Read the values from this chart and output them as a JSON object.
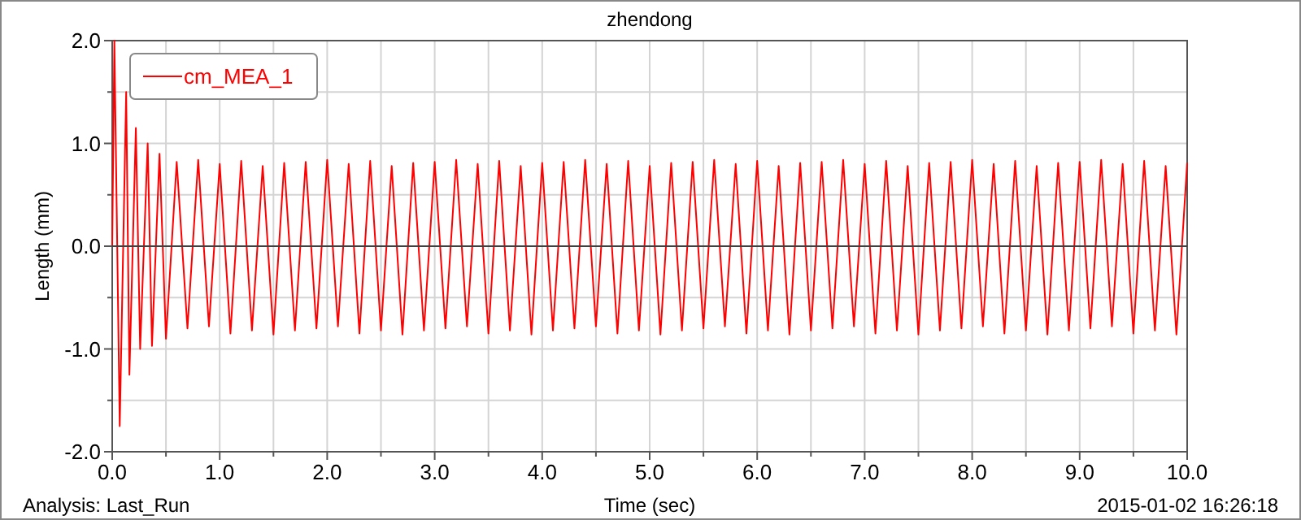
{
  "chart_data": {
    "type": "line",
    "title": "zhendong",
    "xlabel": "Time (sec)",
    "ylabel": "Length (mm)",
    "xlim": [
      0,
      10
    ],
    "ylim": [
      -2,
      2
    ],
    "xticks": [
      {
        "value": 0,
        "label": "0.0"
      },
      {
        "value": 0.5,
        "label": null
      },
      {
        "value": 1,
        "label": "1.0"
      },
      {
        "value": 1.5,
        "label": null
      },
      {
        "value": 2,
        "label": "2.0"
      },
      {
        "value": 2.5,
        "label": null
      },
      {
        "value": 3,
        "label": "3.0"
      },
      {
        "value": 3.5,
        "label": null
      },
      {
        "value": 4,
        "label": "4.0"
      },
      {
        "value": 4.5,
        "label": null
      },
      {
        "value": 5,
        "label": "5.0"
      },
      {
        "value": 5.5,
        "label": null
      },
      {
        "value": 6,
        "label": "6.0"
      },
      {
        "value": 6.5,
        "label": null
      },
      {
        "value": 7,
        "label": "7.0"
      },
      {
        "value": 7.5,
        "label": null
      },
      {
        "value": 8,
        "label": "8.0"
      },
      {
        "value": 8.5,
        "label": null
      },
      {
        "value": 9,
        "label": "9.0"
      },
      {
        "value": 9.5,
        "label": null
      },
      {
        "value": 10,
        "label": "10.0"
      }
    ],
    "yticks": [
      {
        "value": -2,
        "label": "-2.0"
      },
      {
        "value": -1.5,
        "label": null
      },
      {
        "value": -1,
        "label": "-1.0"
      },
      {
        "value": -0.5,
        "label": null
      },
      {
        "value": 0,
        "label": "0.0"
      },
      {
        "value": 0.5,
        "label": null
      },
      {
        "value": 1,
        "label": "1.0"
      },
      {
        "value": 1.5,
        "label": null
      },
      {
        "value": 2,
        "label": "2.0"
      }
    ],
    "grid": true,
    "legend": "top left",
    "line_style": "solid",
    "ref_lines": [
      {
        "axis": "y",
        "value": 0,
        "color": "#404040"
      }
    ],
    "annotations": [
      "Analysis:  Last_Run",
      "2015-01-02 16:26:18"
    ],
    "series": [
      {
        "name": "cm_MEA_1",
        "color": "#ff0000",
        "x": [
          0,
          0.02,
          0.07,
          0.13,
          0.16,
          0.22,
          0.26,
          0.33,
          0.37,
          0.44,
          0.5,
          0.6,
          0.7,
          0.8,
          0.9,
          1.0,
          1.1,
          1.2,
          1.3,
          1.4,
          1.5,
          1.6,
          1.7,
          1.8,
          1.9,
          2.0,
          2.1,
          2.2,
          2.3,
          2.4,
          2.5,
          2.6,
          2.7,
          2.8,
          2.9,
          3.0,
          3.1,
          3.2,
          3.3,
          3.4,
          3.5,
          3.6,
          3.7,
          3.8,
          3.9,
          4.0,
          4.1,
          4.2,
          4.3,
          4.4,
          4.5,
          4.6,
          4.7,
          4.8,
          4.9,
          5.0,
          5.1,
          5.2,
          5.3,
          5.4,
          5.5,
          5.6,
          5.7,
          5.8,
          5.9,
          6.0,
          6.1,
          6.2,
          6.3,
          6.4,
          6.5,
          6.6,
          6.7,
          6.8,
          6.9,
          7.0,
          7.1,
          7.2,
          7.3,
          7.4,
          7.5,
          7.6,
          7.7,
          7.8,
          7.9,
          8.0,
          8.1,
          8.2,
          8.3,
          8.4,
          8.5,
          8.6,
          8.7,
          8.8,
          8.9,
          9.0,
          9.1,
          9.2,
          9.3,
          9.4,
          9.5,
          9.6,
          9.7,
          9.8,
          9.9,
          10.0
        ],
        "values": [
          0,
          2.0,
          -1.75,
          1.5,
          -1.25,
          1.15,
          -1.0,
          1.0,
          -0.97,
          0.9,
          -0.9,
          0.82,
          -0.8,
          0.84,
          -0.78,
          0.8,
          -0.85,
          0.83,
          -0.82,
          0.78,
          -0.86,
          0.81,
          -0.82,
          0.82,
          -0.8,
          0.84,
          -0.78,
          0.8,
          -0.85,
          0.83,
          -0.82,
          0.78,
          -0.86,
          0.81,
          -0.82,
          0.82,
          -0.8,
          0.84,
          -0.78,
          0.8,
          -0.85,
          0.83,
          -0.82,
          0.78,
          -0.86,
          0.81,
          -0.82,
          0.82,
          -0.8,
          0.84,
          -0.78,
          0.8,
          -0.85,
          0.83,
          -0.82,
          0.78,
          -0.86,
          0.81,
          -0.82,
          0.82,
          -0.8,
          0.84,
          -0.78,
          0.8,
          -0.85,
          0.83,
          -0.82,
          0.78,
          -0.86,
          0.81,
          -0.82,
          0.82,
          -0.8,
          0.84,
          -0.78,
          0.8,
          -0.85,
          0.83,
          -0.82,
          0.78,
          -0.86,
          0.81,
          -0.82,
          0.82,
          -0.8,
          0.84,
          -0.78,
          0.8,
          -0.85,
          0.83,
          -0.82,
          0.78,
          -0.86,
          0.81,
          -0.82,
          0.82,
          -0.8,
          0.84,
          -0.78,
          0.8,
          -0.85,
          0.83,
          -0.82,
          0.78,
          -0.86,
          0.81
        ]
      }
    ]
  }
}
